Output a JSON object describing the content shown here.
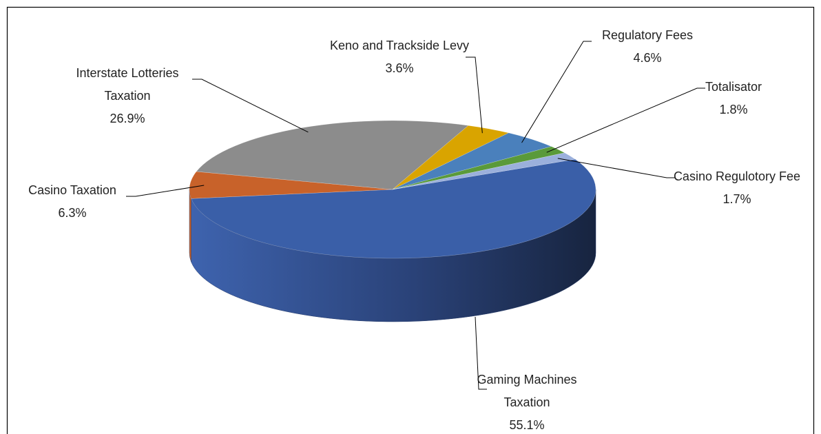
{
  "chart_data": {
    "type": "pie",
    "categories": [
      "Gaming Machines Taxation",
      "Casino Taxation",
      "Interstate Lotteries Taxation",
      "Keno and Trackside Levy",
      "Regulatory Fees",
      "Totalisator",
      "Casino Regulotory Fee"
    ],
    "values": [
      55.1,
      6.3,
      26.9,
      3.6,
      4.6,
      1.8,
      1.7
    ],
    "value_labels": [
      "55.1%",
      "6.3%",
      "26.9%",
      "3.6%",
      "4.6%",
      "1.8%",
      "1.7%"
    ],
    "colors": [
      "#3a5fa8",
      "#c8622a",
      "#8c8c8c",
      "#d9a400",
      "#4a80bc",
      "#5a9a3a",
      "#9bb0dc"
    ]
  }
}
